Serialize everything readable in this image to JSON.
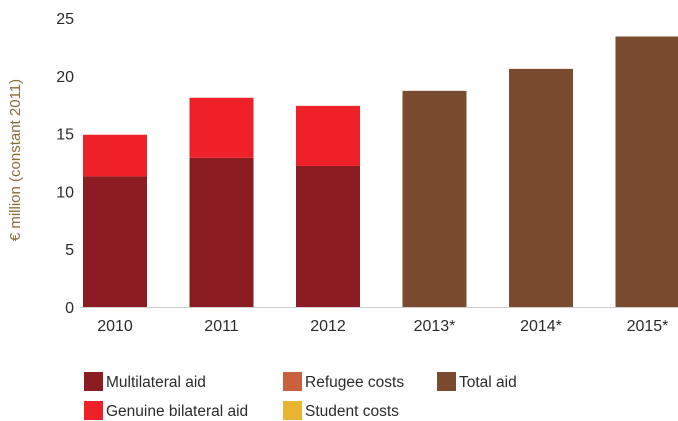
{
  "chart_data": {
    "type": "bar",
    "stacked": true,
    "title": "",
    "xlabel": "",
    "ylabel": "€ million (constant 2011)",
    "ylim": [
      0,
      25
    ],
    "yticks": [
      0,
      5,
      10,
      15,
      20,
      25
    ],
    "grid": false,
    "legend_position": "bottom",
    "categories": [
      "2010",
      "2011",
      "2012",
      "2013*",
      "2014*",
      "2015*"
    ],
    "series": [
      {
        "name": "Multilateral aid",
        "color": "#8b1c22",
        "values": [
          11.3,
          12.9,
          12.2,
          0,
          0,
          0
        ]
      },
      {
        "name": "Genuine bilateral aid",
        "color": "#ee2128",
        "values": [
          3.6,
          5.2,
          5.2,
          0,
          0,
          0
        ]
      },
      {
        "name": "Refugee costs",
        "color": "#c8603f",
        "values": [
          0,
          0,
          0,
          0,
          0,
          0
        ]
      },
      {
        "name": "Student costs",
        "color": "#e8b431",
        "values": [
          0,
          0,
          0,
          0,
          0,
          0
        ]
      },
      {
        "name": "Total aid",
        "color": "#7a4b2e",
        "values": [
          0,
          0,
          0,
          18.7,
          20.6,
          23.4
        ]
      }
    ],
    "legend": [
      {
        "label": "Multilateral aid",
        "color": "#8b1c22"
      },
      {
        "label": "Refugee costs",
        "color": "#c8603f"
      },
      {
        "label": "Total aid",
        "color": "#7a4b2e"
      },
      {
        "label": "Genuine bilateral aid",
        "color": "#ee2128"
      },
      {
        "label": "Student costs",
        "color": "#e8b431"
      }
    ]
  }
}
